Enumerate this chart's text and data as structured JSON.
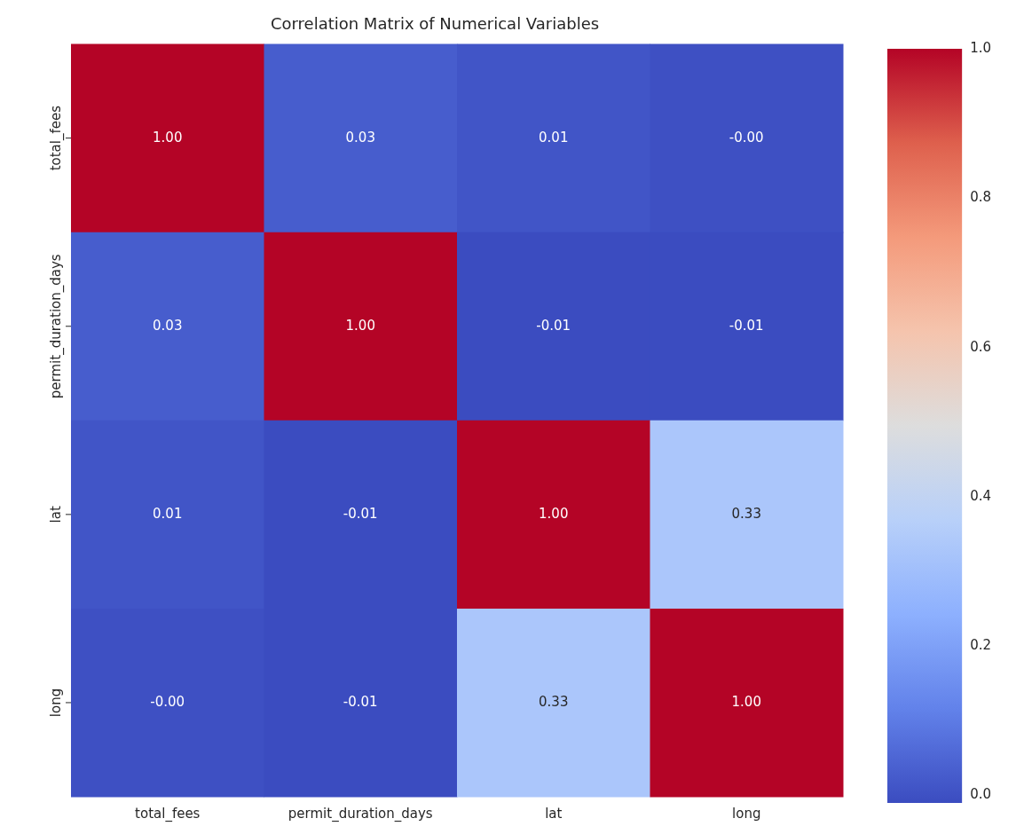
{
  "chart_data": {
    "type": "heatmap",
    "title": "Correlation Matrix of Numerical Variables",
    "categories": [
      "total_fees",
      "permit_duration_days",
      "lat",
      "long"
    ],
    "y_categories": [
      "total_fees",
      "permit_duration_days",
      "lat",
      "long"
    ],
    "cells": [
      [
        1,
        0.03,
        0.01,
        0
      ],
      [
        0.03,
        1,
        -0.01,
        -0.01
      ],
      [
        0.01,
        -0.01,
        1,
        0.33
      ],
      [
        0,
        -0.01,
        0.33,
        1
      ]
    ],
    "cell_labels": [
      [
        "1.00",
        "0.03",
        "0.01",
        "-0.00"
      ],
      [
        "0.03",
        "1.00",
        "-0.01",
        "-0.01"
      ],
      [
        "0.01",
        "-0.01",
        "1.00",
        "0.33"
      ],
      [
        "-0.00",
        "-0.01",
        "0.33",
        "1.00"
      ]
    ],
    "clim": [
      -0.01,
      1
    ],
    "cticks": [
      {
        "value": 0,
        "label": "0.0"
      },
      {
        "value": 0.2,
        "label": "0.2"
      },
      {
        "value": 0.4,
        "label": "0.4"
      },
      {
        "value": 0.6,
        "label": "0.6"
      },
      {
        "value": 0.8,
        "label": "0.8"
      },
      {
        "value": 1,
        "label": "1.0"
      }
    ]
  }
}
